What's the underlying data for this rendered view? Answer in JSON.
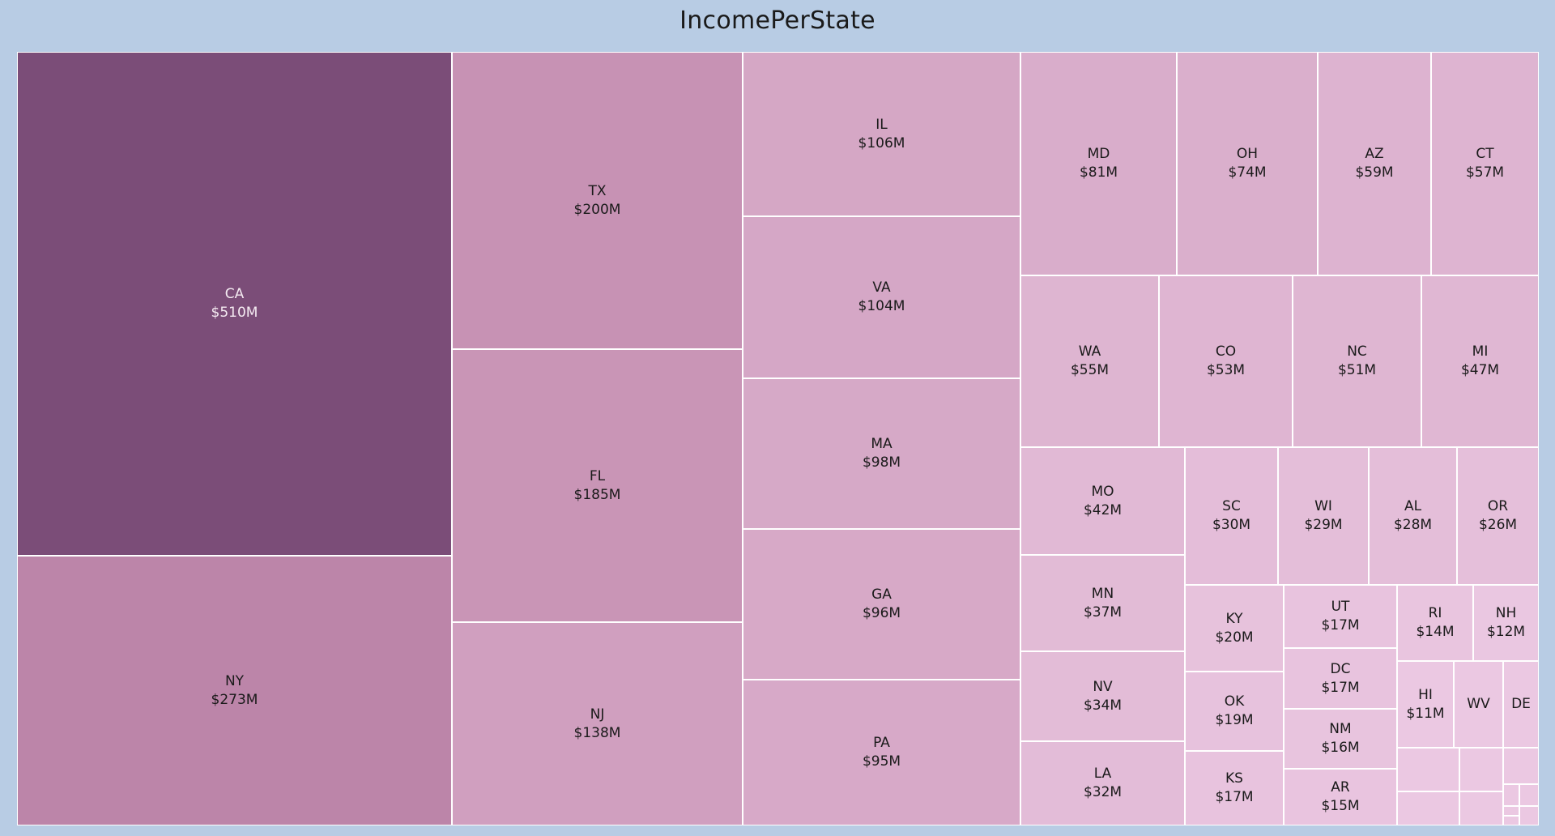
{
  "chart_data": {
    "type": "treemap",
    "title": "IncomePerState",
    "unit_prefix": "$",
    "unit_suffix": "M",
    "items": [
      {
        "label": "CA",
        "value": 510,
        "value_text": "$510M"
      },
      {
        "label": "NY",
        "value": 273,
        "value_text": "$273M"
      },
      {
        "label": "TX",
        "value": 200,
        "value_text": "$200M"
      },
      {
        "label": "FL",
        "value": 185,
        "value_text": "$185M"
      },
      {
        "label": "NJ",
        "value": 138,
        "value_text": "$138M"
      },
      {
        "label": "IL",
        "value": 106,
        "value_text": "$106M"
      },
      {
        "label": "VA",
        "value": 104,
        "value_text": "$104M"
      },
      {
        "label": "MA",
        "value": 98,
        "value_text": "$98M"
      },
      {
        "label": "GA",
        "value": 96,
        "value_text": "$96M"
      },
      {
        "label": "PA",
        "value": 95,
        "value_text": "$95M"
      },
      {
        "label": "MD",
        "value": 81,
        "value_text": "$81M"
      },
      {
        "label": "OH",
        "value": 74,
        "value_text": "$74M"
      },
      {
        "label": "AZ",
        "value": 59,
        "value_text": "$59M"
      },
      {
        "label": "CT",
        "value": 57,
        "value_text": "$57M"
      },
      {
        "label": "WA",
        "value": 55,
        "value_text": "$55M"
      },
      {
        "label": "CO",
        "value": 53,
        "value_text": "$53M"
      },
      {
        "label": "NC",
        "value": 51,
        "value_text": "$51M"
      },
      {
        "label": "MI",
        "value": 47,
        "value_text": "$47M"
      },
      {
        "label": "MO",
        "value": 42,
        "value_text": "$42M"
      },
      {
        "label": "MN",
        "value": 37,
        "value_text": "$37M"
      },
      {
        "label": "NV",
        "value": 34,
        "value_text": "$34M"
      },
      {
        "label": "LA",
        "value": 32,
        "value_text": "$32M"
      },
      {
        "label": "SC",
        "value": 30,
        "value_text": "$30M"
      },
      {
        "label": "WI",
        "value": 29,
        "value_text": "$29M"
      },
      {
        "label": "AL",
        "value": 28,
        "value_text": "$28M"
      },
      {
        "label": "OR",
        "value": 26,
        "value_text": "$26M"
      },
      {
        "label": "KY",
        "value": 20,
        "value_text": "$20M"
      },
      {
        "label": "OK",
        "value": 19,
        "value_text": "$19M"
      },
      {
        "label": "KS",
        "value": 17,
        "value_text": "$17M"
      },
      {
        "label": "UT",
        "value": 17,
        "value_text": "$17M"
      },
      {
        "label": "DC",
        "value": 17,
        "value_text": "$17M"
      },
      {
        "label": "NM",
        "value": 16,
        "value_text": "$16M"
      },
      {
        "label": "AR",
        "value": 15,
        "value_text": "$15M"
      },
      {
        "label": "RI",
        "value": 14,
        "value_text": "$14M"
      },
      {
        "label": "NH",
        "value": 12,
        "value_text": "$12M"
      },
      {
        "label": "HI",
        "value": 11,
        "value_text": "$11M"
      },
      {
        "label": "WV",
        "value": null,
        "value_text": ""
      },
      {
        "label": "DE",
        "value": null,
        "value_text": ""
      },
      {
        "label": "",
        "value": null,
        "value_text": ""
      },
      {
        "label": "",
        "value": null,
        "value_text": ""
      },
      {
        "label": "",
        "value": null,
        "value_text": ""
      },
      {
        "label": "",
        "value": null,
        "value_text": ""
      },
      {
        "label": "",
        "value": null,
        "value_text": ""
      },
      {
        "label": "",
        "value": null,
        "value_text": ""
      },
      {
        "label": "",
        "value": null,
        "value_text": ""
      },
      {
        "label": "",
        "value": null,
        "value_text": ""
      },
      {
        "label": "",
        "value": null,
        "value_text": ""
      },
      {
        "label": "",
        "value": null,
        "value_text": ""
      }
    ],
    "colors": {
      "background": "#b8cce4",
      "darkest": "#7b4d78",
      "lightest": "#ebc8e2",
      "tile_border": "#ffffff"
    }
  }
}
